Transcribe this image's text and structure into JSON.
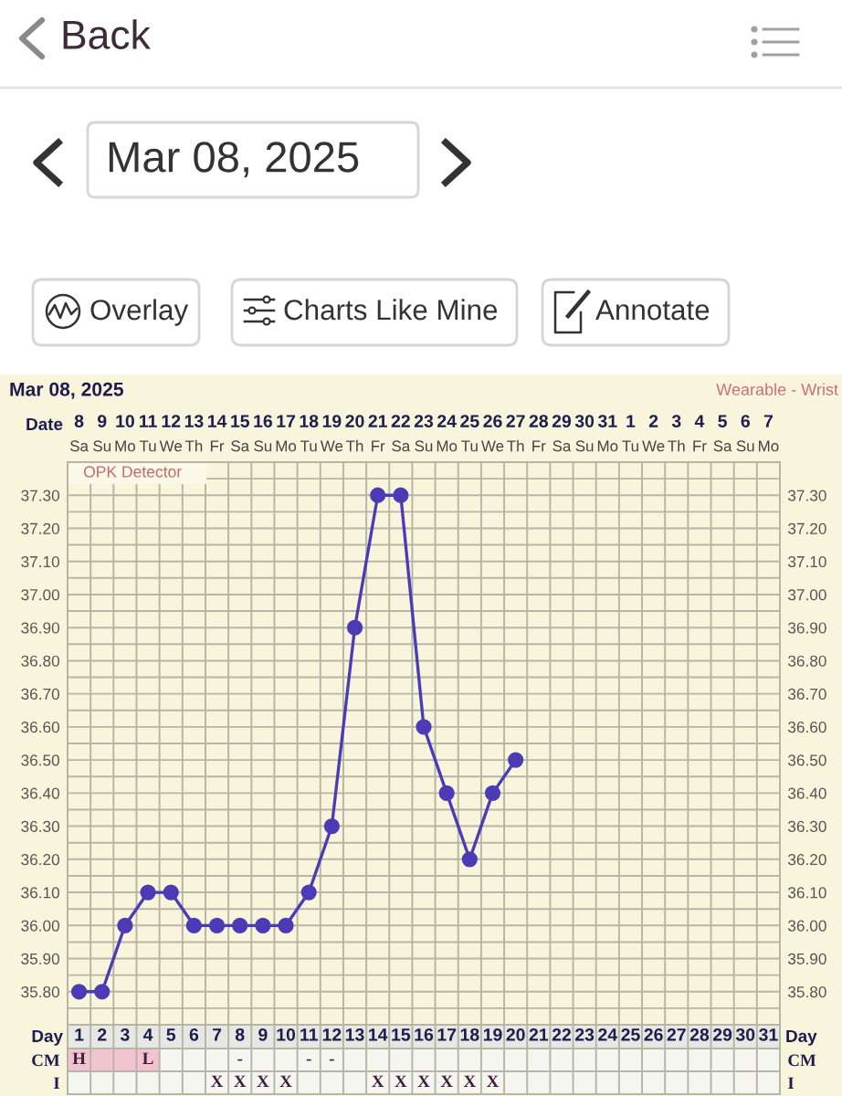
{
  "chart_data": [
    {
      "type": "other",
      "annotations": [
        "Back",
        "Mar 08, 2025",
        "Overlay",
        "Charts Like Mine",
        "Annotate"
      ]
    },
    {
      "type": "line",
      "title": "Mar 08, 2025",
      "subtitle": "Wearable - Wrist",
      "x2label": "Date",
      "annotations": [
        "OPK Detector"
      ],
      "categories": [
        "Sa",
        "Su",
        "Mo",
        "Tu",
        "We",
        "Th",
        "Fr",
        "Sa",
        "Su",
        "Mo",
        "Tu",
        "We",
        "Th",
        "Fr",
        "Sa",
        "Su",
        "Mo",
        "Tu",
        "We",
        "Th",
        "Fr",
        "Sa",
        "Su",
        "Mo",
        "Tu",
        "We",
        "Th",
        "Fr",
        "Sa",
        "Su",
        "Mo"
      ],
      "series": [
        {
          "color": "#4b3bb5",
          "values": [
            35.8,
            35.8,
            36.0,
            36.1,
            36.1,
            36.0,
            36.0,
            36.0,
            36.0,
            36.0,
            36.1,
            36.3,
            36.9,
            37.3,
            37.3,
            36.6,
            36.4,
            36.2,
            36.4,
            36.5,
            null,
            null,
            null,
            null,
            null,
            null,
            null,
            null,
            null,
            null,
            null
          ]
        }
      ],
      "marker": "circle",
      "line_style": "solid",
      "grid": true,
      "x2lim": [
        "2025-03-07T12:00",
        "2025-04-07T12:00"
      ],
      "x2ticks": [
        {
          "value": "2025-03-08",
          "label": "8"
        },
        {
          "value": "2025-03-09",
          "label": "9"
        },
        {
          "value": "2025-03-10",
          "label": "10"
        },
        {
          "value": "2025-03-11",
          "label": "11"
        },
        {
          "value": "2025-03-12",
          "label": "12"
        },
        {
          "value": "2025-03-13",
          "label": "13"
        },
        {
          "value": "2025-03-14",
          "label": "14"
        },
        {
          "value": "2025-03-15",
          "label": "15"
        },
        {
          "value": "2025-03-16",
          "label": "16"
        },
        {
          "value": "2025-03-17",
          "label": "17"
        },
        {
          "value": "2025-03-18",
          "label": "18"
        },
        {
          "value": "2025-03-19",
          "label": "19"
        },
        {
          "value": "2025-03-20",
          "label": "20"
        },
        {
          "value": "2025-03-21",
          "label": "21"
        },
        {
          "value": "2025-03-22",
          "label": "22"
        },
        {
          "value": "2025-03-23",
          "label": "23"
        },
        {
          "value": "2025-03-24",
          "label": "24"
        },
        {
          "value": "2025-03-25",
          "label": "25"
        },
        {
          "value": "2025-03-26",
          "label": "26"
        },
        {
          "value": "2025-03-27",
          "label": "27"
        },
        {
          "value": "2025-03-28",
          "label": "28"
        },
        {
          "value": "2025-03-29",
          "label": "29"
        },
        {
          "value": "2025-03-30",
          "label": "30"
        },
        {
          "value": "2025-03-31",
          "label": "31"
        },
        {
          "value": "2025-04-01",
          "label": "1"
        },
        {
          "value": "2025-04-02",
          "label": "2"
        },
        {
          "value": "2025-04-03",
          "label": "3"
        },
        {
          "value": "2025-04-04",
          "label": "4"
        },
        {
          "value": "2025-04-05",
          "label": "5"
        },
        {
          "value": "2025-04-06",
          "label": "6"
        },
        {
          "value": "2025-04-07",
          "label": "7"
        }
      ],
      "ylim": [
        35.7,
        37.4
      ],
      "yticks": [
        {
          "value": 35.75,
          "label": null
        },
        {
          "value": 35.8,
          "label": "35.80"
        },
        {
          "value": 35.85,
          "label": null
        },
        {
          "value": 35.9,
          "label": "35.90"
        },
        {
          "value": 35.95,
          "label": null
        },
        {
          "value": 36.0,
          "label": "36.00"
        },
        {
          "value": 36.05,
          "label": null
        },
        {
          "value": 36.1,
          "label": "36.10"
        },
        {
          "value": 36.15,
          "label": null
        },
        {
          "value": 36.2,
          "label": "36.20"
        },
        {
          "value": 36.25,
          "label": null
        },
        {
          "value": 36.3,
          "label": "36.30"
        },
        {
          "value": 36.35,
          "label": null
        },
        {
          "value": 36.4,
          "label": "36.40"
        },
        {
          "value": 36.45,
          "label": null
        },
        {
          "value": 36.5,
          "label": "36.50"
        },
        {
          "value": 36.55,
          "label": null
        },
        {
          "value": 36.6,
          "label": "36.60"
        },
        {
          "value": 36.65,
          "label": null
        },
        {
          "value": 36.7,
          "label": "36.70"
        },
        {
          "value": 36.75,
          "label": null
        },
        {
          "value": 36.8,
          "label": "36.80"
        },
        {
          "value": 36.85,
          "label": null
        },
        {
          "value": 36.9,
          "label": "36.90"
        },
        {
          "value": 36.95,
          "label": null
        },
        {
          "value": 37.0,
          "label": "37.00"
        },
        {
          "value": 37.05,
          "label": null
        },
        {
          "value": 37.1,
          "label": "37.10"
        },
        {
          "value": 37.15,
          "label": null
        },
        {
          "value": 37.2,
          "label": "37.20"
        },
        {
          "value": 37.25,
          "label": null
        },
        {
          "value": 37.3,
          "label": "37.30"
        },
        {
          "value": 37.35,
          "label": null
        }
      ],
      "y2lim": [
        35.7,
        37.4
      ],
      "y2ticks": [
        {
          "value": 35.8,
          "label": "35.80"
        },
        {
          "value": 35.9,
          "label": "35.90"
        },
        {
          "value": 36.0,
          "label": "36.00"
        },
        {
          "value": 36.1,
          "label": "36.10"
        },
        {
          "value": 36.2,
          "label": "36.20"
        },
        {
          "value": 36.3,
          "label": "36.30"
        },
        {
          "value": 36.4,
          "label": "36.40"
        },
        {
          "value": 36.5,
          "label": "36.50"
        },
        {
          "value": 36.6,
          "label": "36.60"
        },
        {
          "value": 36.7,
          "label": "36.70"
        },
        {
          "value": 36.8,
          "label": "36.80"
        },
        {
          "value": 36.9,
          "label": "36.90"
        },
        {
          "value": 37.0,
          "label": "37.00"
        },
        {
          "value": 37.1,
          "label": "37.10"
        },
        {
          "value": 37.2,
          "label": "37.20"
        },
        {
          "value": 37.3,
          "label": "37.30"
        }
      ]
    },
    {
      "type": "heatmap",
      "xlabel": "Day",
      "grid": true,
      "categories": [
        "1",
        "2",
        "3",
        "4",
        "5",
        "6",
        "7",
        "8",
        "9",
        "10",
        "11",
        "12",
        "13",
        "14",
        "15",
        "16",
        "17",
        "18",
        "19",
        "20",
        "21",
        "22",
        "23",
        "24",
        "25",
        "26",
        "27",
        "28",
        "29",
        "30",
        "31"
      ],
      "y_categories": [
        "CM",
        "I"
      ],
      "y2_categories": [
        "CM",
        "I"
      ],
      "cells": [
        [
          null,
          null,
          null,
          null,
          null,
          null,
          null,
          null,
          null,
          null,
          null,
          null,
          null,
          null,
          null,
          null,
          null,
          null,
          null,
          null,
          null,
          null,
          null,
          null,
          null,
          null,
          null,
          null,
          null,
          null,
          null
        ],
        [
          null,
          null,
          null,
          null,
          null,
          null,
          null,
          null,
          null,
          null,
          null,
          null,
          null,
          null,
          null,
          null,
          null,
          null,
          null,
          null,
          null,
          null,
          null,
          null,
          null,
          null,
          null,
          null,
          null,
          null,
          null
        ]
      ],
      "cell_labels": [
        [
          "H",
          null,
          null,
          "L",
          null,
          null,
          null,
          "-",
          null,
          null,
          "-",
          "-",
          null,
          null,
          null,
          null,
          null,
          null,
          null,
          null,
          null,
          null,
          null,
          null,
          null,
          null,
          null,
          null,
          null,
          null,
          null
        ],
        [
          null,
          null,
          null,
          null,
          null,
          null,
          "X",
          "X",
          "X",
          "X",
          null,
          null,
          null,
          "X",
          "X",
          "X",
          "X",
          "X",
          "X",
          null,
          null,
          null,
          null,
          null,
          null,
          null,
          null,
          null,
          null,
          null,
          null
        ]
      ],
      "bands": [
        {
          "axis": "x",
          "from": "1",
          "to": "4",
          "color": "#f2c3d0"
        }
      ]
    }
  ]
}
